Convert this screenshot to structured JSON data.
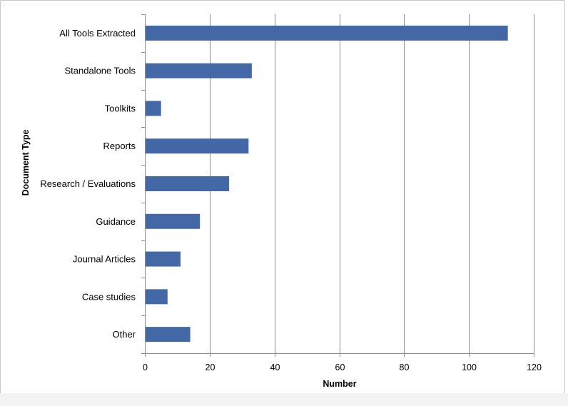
{
  "chart_data": {
    "type": "bar",
    "orientation": "horizontal",
    "xlabel": "Number",
    "ylabel": "Document Type",
    "categories": [
      "All Tools Extracted",
      "Standalone Tools",
      "Toolkits",
      "Reports",
      "Research / Evaluations",
      "Guidance",
      "Journal Articles",
      "Case studies",
      "Other"
    ],
    "values": [
      112,
      33,
      5,
      32,
      26,
      17,
      11,
      7,
      14
    ],
    "xlim": [
      0,
      120
    ],
    "xticks": [
      "0",
      "20",
      "40",
      "60",
      "80",
      "100",
      "120"
    ],
    "grid": "vertical major gridlines",
    "legend": "none",
    "colors": {
      "bar": "#4468a6",
      "grid": "#8c8c8c",
      "axis": "#8c8c8c"
    }
  }
}
